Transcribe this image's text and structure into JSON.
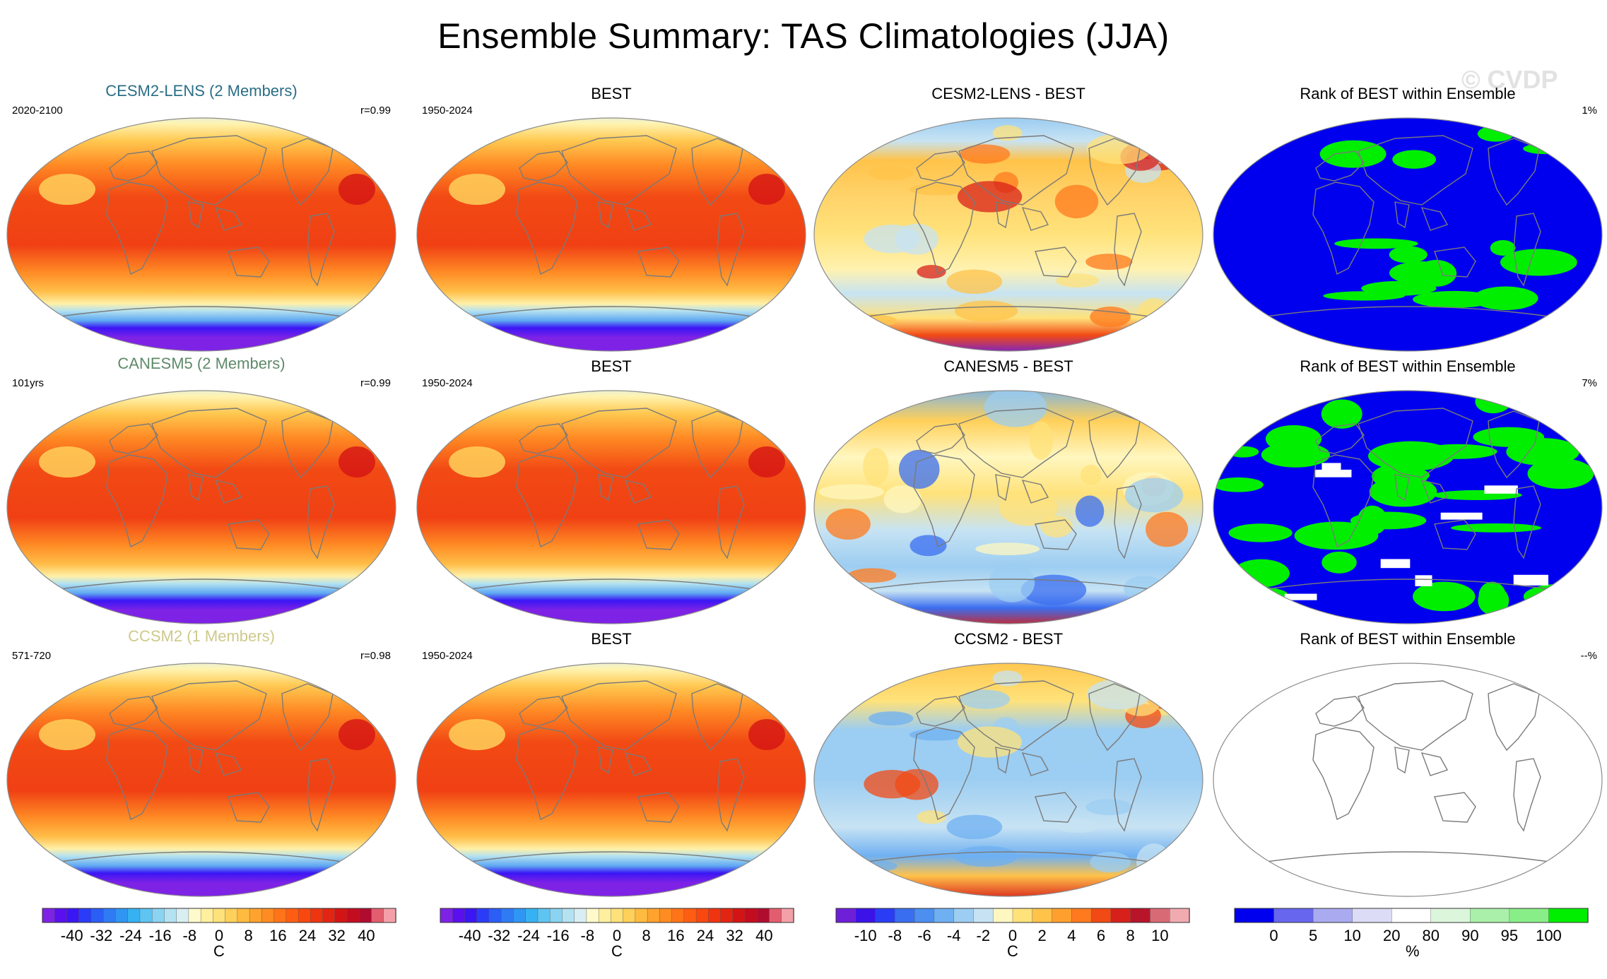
{
  "title": "Ensemble Summary: TAS Climatologies (JJA)",
  "watermark": "© CVDP",
  "colors": {
    "cesm2_lens": "#2a6e86",
    "canesm5": "#5f8a6a",
    "ccsm2": "#cfc98a",
    "rank_low": "#0000ee",
    "rank_high": "#00ee00",
    "land_outline": "#7a7a7a"
  },
  "rows": [
    {
      "model_panel": {
        "title": "CESM2-LENS (2 Members)",
        "left": "2020-2100",
        "right": "r=0.99",
        "field": "tas"
      },
      "obs_panel": {
        "title": "BEST",
        "left": "1950-2024",
        "right": "",
        "field": "tas"
      },
      "diff_panel": {
        "title": "CESM2-LENS - BEST",
        "left": "",
        "right": "",
        "field": "diff-warm"
      },
      "rank_panel": {
        "title": "Rank of BEST within Ensemble",
        "left": "",
        "right": "1%",
        "field": "rank-blue"
      }
    },
    {
      "model_panel": {
        "title": "CANESM5 (2 Members)",
        "left": "101yrs",
        "right": "r=0.99",
        "field": "tas"
      },
      "obs_panel": {
        "title": "BEST",
        "left": "1950-2024",
        "right": "",
        "field": "tas"
      },
      "diff_panel": {
        "title": "CANESM5 - BEST",
        "left": "",
        "right": "",
        "field": "diff-mixed"
      },
      "rank_panel": {
        "title": "Rank of BEST within Ensemble",
        "left": "",
        "right": "7%",
        "field": "rank-mixed"
      }
    },
    {
      "model_panel": {
        "title": "CCSM2 (1 Members)",
        "left": "571-720",
        "right": "r=0.98",
        "field": "tas"
      },
      "obs_panel": {
        "title": "BEST",
        "left": "1950-2024",
        "right": "",
        "field": "tas"
      },
      "diff_panel": {
        "title": "CCSM2 - BEST",
        "left": "",
        "right": "",
        "field": "diff-cool"
      },
      "rank_panel": {
        "title": "Rank of BEST within Ensemble",
        "left": "",
        "right": "--%",
        "field": "blank"
      }
    }
  ],
  "colorbars": [
    {
      "unit": "C",
      "labels": [
        "-40",
        "-32",
        "-24",
        "-16",
        "-8",
        "0",
        "8",
        "16",
        "24",
        "32",
        "40"
      ],
      "colors": [
        "#7e22e6",
        "#5a10ee",
        "#3a16f5",
        "#2a3cf8",
        "#2a5ef5",
        "#2f7bf4",
        "#2f97f3",
        "#36b2f2",
        "#5ec4f2",
        "#8ad4f1",
        "#b4e2f0",
        "#d9eef2",
        "#fffacc",
        "#ffef9e",
        "#ffe17a",
        "#ffd05a",
        "#ffba40",
        "#ffa32e",
        "#ff8c22",
        "#ff7418",
        "#ff5e12",
        "#f84810",
        "#ef3410",
        "#e42412",
        "#d41414",
        "#c40c20",
        "#b00c30",
        "#e25e6e",
        "#f4a0a8"
      ]
    },
    {
      "unit": "C",
      "labels": [
        "-40",
        "-32",
        "-24",
        "-16",
        "-8",
        "0",
        "8",
        "16",
        "24",
        "32",
        "40"
      ],
      "colors": [
        "#7e22e6",
        "#5a10ee",
        "#3a16f5",
        "#2a3cf8",
        "#2a5ef5",
        "#2f7bf4",
        "#2f97f3",
        "#36b2f2",
        "#5ec4f2",
        "#8ad4f1",
        "#b4e2f0",
        "#d9eef2",
        "#fffacc",
        "#ffef9e",
        "#ffe17a",
        "#ffd05a",
        "#ffba40",
        "#ffa32e",
        "#ff8c22",
        "#ff7418",
        "#ff5e12",
        "#f84810",
        "#ef3410",
        "#e42412",
        "#d41414",
        "#c40c20",
        "#b00c30",
        "#e25e6e",
        "#f4a0a8"
      ]
    },
    {
      "unit": "C",
      "labels": [
        "-10",
        "-8",
        "-6",
        "-4",
        "-2",
        "0",
        "2",
        "4",
        "6",
        "8",
        "10"
      ],
      "colors": [
        "#6e1fd8",
        "#3b12e8",
        "#2a3df4",
        "#3a6ef0",
        "#4c8ff0",
        "#6fb0f2",
        "#9ccdf2",
        "#c7e3f3",
        "#fff7c0",
        "#ffe27a",
        "#ffc34a",
        "#ffa02e",
        "#ff7a1e",
        "#f24a14",
        "#d8201a",
        "#b8142a",
        "#d86a76",
        "#f0aab0"
      ]
    },
    {
      "unit": "%",
      "labels": [
        "0",
        "5",
        "10",
        "20",
        "80",
        "90",
        "95",
        "100"
      ],
      "colors": [
        "#0000ee",
        "#6666ee",
        "#aaaaf0",
        "#dcdcf6",
        "#ffffff",
        "#dcf6dc",
        "#aaf0aa",
        "#88ee88",
        "#00ee00"
      ]
    }
  ]
}
